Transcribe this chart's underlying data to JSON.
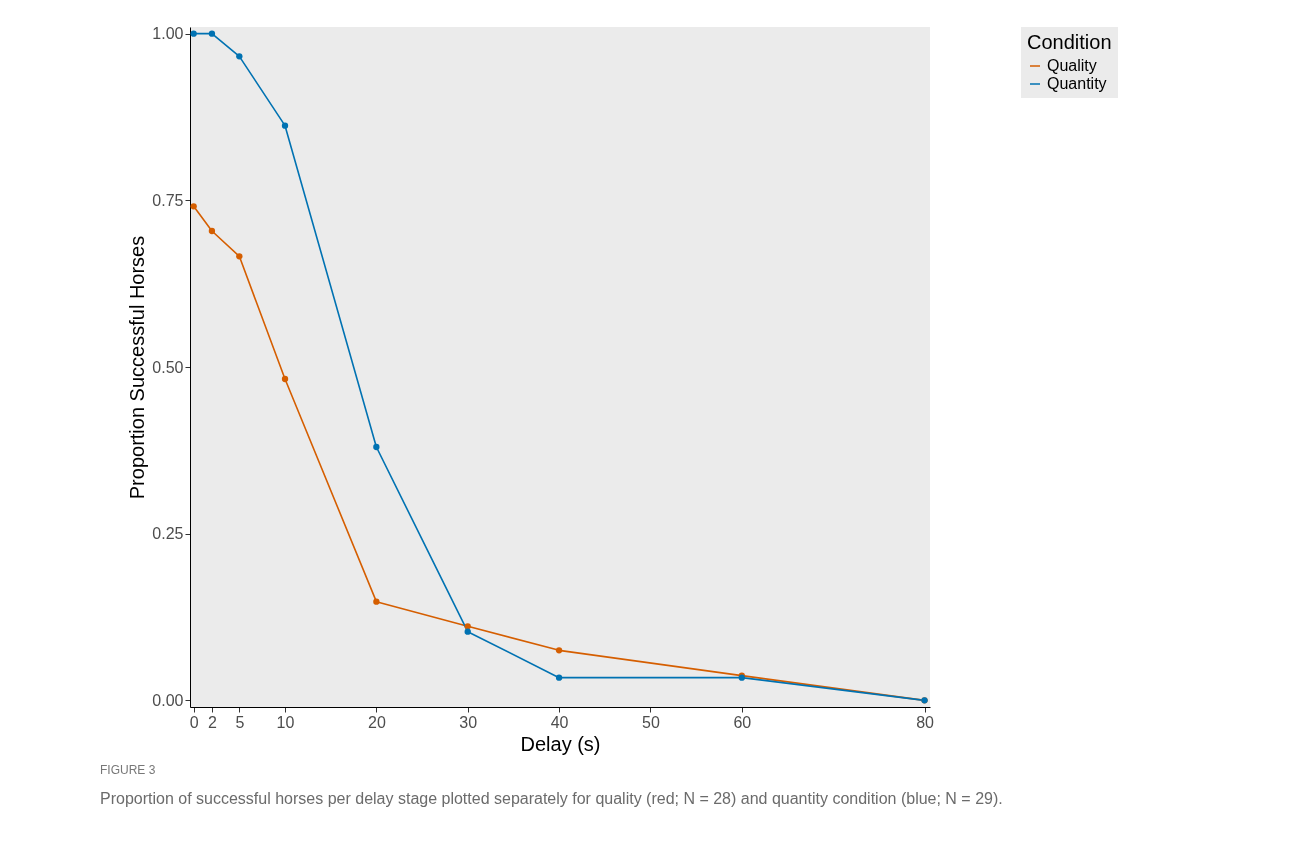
{
  "chart_data": {
    "type": "line",
    "xlabel": "Delay (s)",
    "ylabel": "Proportion Successful Horses",
    "legend_title": "Condition",
    "x": [
      0,
      2,
      5,
      10,
      20,
      30,
      40,
      60,
      80
    ],
    "series": [
      {
        "name": "Quality",
        "color": "#d55e00",
        "values": [
          0.741,
          0.704,
          0.666,
          0.482,
          0.148,
          0.111,
          0.075,
          0.037,
          0
        ]
      },
      {
        "name": "Quantity",
        "color": "#0072b2",
        "values": [
          1,
          1,
          0.966,
          0.862,
          0.38,
          0.103,
          0.034,
          0.034,
          0
        ]
      }
    ],
    "xlim": [
      -0.4,
      80.6
    ],
    "xticks": [
      0,
      2,
      5,
      10,
      20,
      30,
      40,
      50,
      60,
      80
    ],
    "ylim": [
      -0.01,
      1.01
    ],
    "yticks": [
      {
        "value": 0,
        "label": "0.00"
      },
      {
        "value": 0.25,
        "label": "0.25"
      },
      {
        "value": 0.5,
        "label": "0.50"
      },
      {
        "value": 0.75,
        "label": "0.75"
      },
      {
        "value": 1,
        "label": "1.00"
      }
    ],
    "grid": false,
    "legend": "right",
    "marker": "circle",
    "line_style": "solid",
    "annotations": [
      "FIGURE 3",
      "Proportion of successful horses per delay stage plotted separately for quality (red; N = 28) and quantity condition (blue; N = 29)."
    ]
  }
}
